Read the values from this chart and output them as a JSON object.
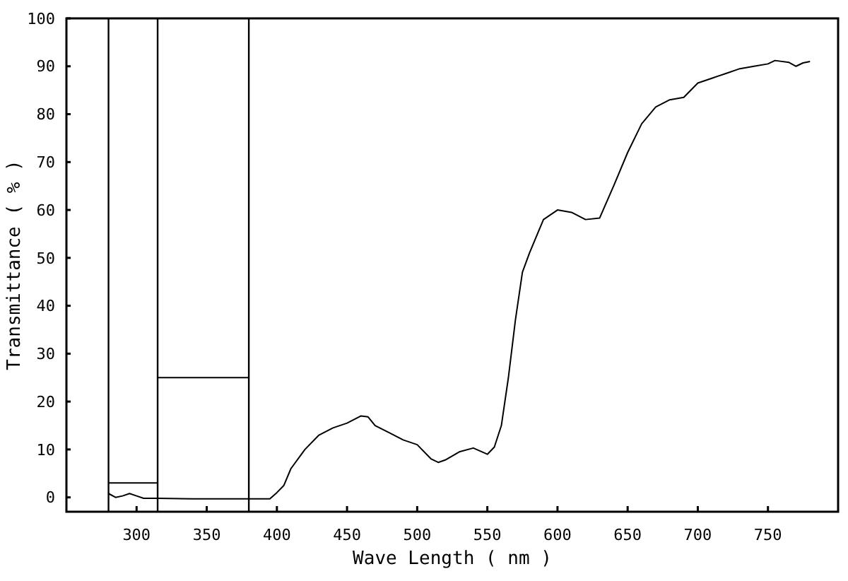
{
  "chart_data": {
    "type": "line",
    "xlabel": "Wave Length ( nm )",
    "ylabel": "Transmittance ( % )",
    "xlim": [
      250,
      800
    ],
    "ylim": [
      -3,
      100
    ],
    "xticks": [
      300,
      350,
      400,
      450,
      500,
      550,
      600,
      650,
      700,
      750
    ],
    "yticks": [
      0,
      10,
      20,
      30,
      40,
      50,
      60,
      70,
      80,
      90,
      100
    ],
    "grid": false,
    "marker": "none",
    "line_style": "solid",
    "ref_lines": [
      {
        "axis": "x",
        "value": 280,
        "color": "#000000"
      },
      {
        "axis": "x",
        "value": 315,
        "color": "#000000"
      },
      {
        "axis": "x",
        "value": 380,
        "color": "#000000"
      }
    ],
    "series": [
      {
        "color": "#000000",
        "x": [
          280,
          285,
          290,
          295,
          300,
          305,
          315,
          340,
          370,
          395,
          400,
          405,
          410,
          420,
          430,
          440,
          450,
          460,
          465,
          470,
          480,
          490,
          500,
          510,
          515,
          520,
          530,
          540,
          550,
          555,
          560,
          565,
          570,
          575,
          580,
          590,
          600,
          610,
          620,
          630,
          640,
          650,
          660,
          670,
          680,
          690,
          700,
          710,
          720,
          730,
          740,
          750,
          755,
          765,
          770,
          775,
          780
        ],
        "values": [
          0.8,
          0,
          0.3,
          0.8,
          0.3,
          -0.2,
          -0.2,
          -0.3,
          -0.3,
          -0.3,
          1,
          2.5,
          6,
          10,
          13,
          14.5,
          15.5,
          17,
          16.8,
          15,
          13.5,
          12,
          11,
          8,
          7.3,
          7.8,
          9.5,
          10.3,
          9,
          10.5,
          15,
          25,
          37,
          47,
          51,
          58,
          60,
          59.5,
          58,
          58.3,
          65,
          72,
          78,
          81.5,
          83,
          83.5,
          86.5,
          87.5,
          88.5,
          89.5,
          90,
          90.5,
          91.2,
          90.8,
          90,
          90.7,
          91
        ]
      },
      {
        "color": "#000000",
        "x": [
          280,
          315
        ],
        "values": [
          3,
          3
        ]
      },
      {
        "color": "#000000",
        "x": [
          315,
          380
        ],
        "values": [
          25,
          25
        ]
      }
    ]
  }
}
